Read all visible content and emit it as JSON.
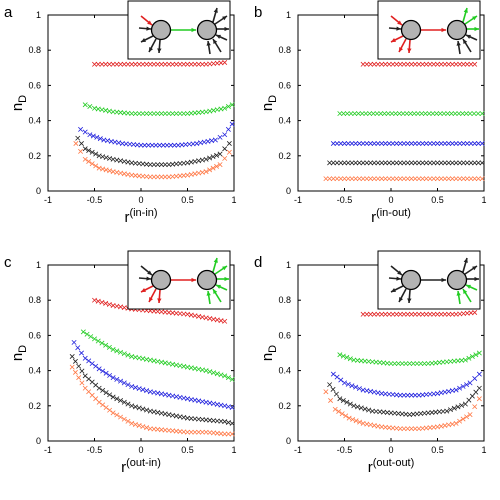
{
  "colors": {
    "red": "#e02020",
    "green": "#22cc22",
    "blue": "#2020dd",
    "black": "#222222",
    "orange": "#ff7744"
  },
  "chart_data": [
    {
      "type": "scatter",
      "panel": "a",
      "xlabel": "r",
      "xlabel_sup": "(in-in)",
      "ylabel": "n",
      "ylabel_sub": "D",
      "xlim": [
        -1,
        1
      ],
      "ylim": [
        0,
        1
      ],
      "xticks": [
        -1,
        -0.5,
        0,
        0.5,
        1
      ],
      "yticks": [
        0,
        0.2,
        0.4,
        0.6,
        0.8,
        1
      ],
      "xtick_labels": [
        "-1",
        "-0.5",
        "0",
        "0.5",
        "1"
      ],
      "ytick_labels": [
        "0",
        "0.2",
        "0.4",
        "0.6",
        "0.8",
        "1"
      ],
      "inset": {
        "in_colored": true,
        "out_colored": false
      },
      "series": [
        {
          "color": "red",
          "x": [
            -0.5,
            -0.3,
            -0.1,
            0.1,
            0.3,
            0.5,
            0.7,
            0.9
          ],
          "y": [
            0.72,
            0.72,
            0.72,
            0.72,
            0.72,
            0.72,
            0.72,
            0.73
          ]
        },
        {
          "color": "green",
          "x": [
            -0.6,
            -0.5,
            -0.3,
            -0.1,
            0.1,
            0.3,
            0.5,
            0.7,
            0.9,
            0.98
          ],
          "y": [
            0.49,
            0.47,
            0.45,
            0.44,
            0.44,
            0.44,
            0.44,
            0.45,
            0.47,
            0.49
          ]
        },
        {
          "color": "blue",
          "x": [
            -0.65,
            -0.55,
            -0.4,
            -0.2,
            0,
            0.2,
            0.4,
            0.6,
            0.8,
            0.9,
            0.98
          ],
          "y": [
            0.35,
            0.32,
            0.29,
            0.27,
            0.26,
            0.26,
            0.26,
            0.27,
            0.29,
            0.32,
            0.38
          ]
        },
        {
          "color": "black",
          "x": [
            -0.68,
            -0.6,
            -0.45,
            -0.3,
            -0.1,
            0.1,
            0.3,
            0.5,
            0.7,
            0.85,
            0.95
          ],
          "y": [
            0.3,
            0.24,
            0.2,
            0.18,
            0.16,
            0.15,
            0.15,
            0.16,
            0.18,
            0.21,
            0.27
          ]
        },
        {
          "color": "orange",
          "x": [
            -0.7,
            -0.6,
            -0.45,
            -0.3,
            -0.1,
            0.1,
            0.3,
            0.5,
            0.7,
            0.85,
            0.95
          ],
          "y": [
            0.27,
            0.18,
            0.13,
            0.11,
            0.09,
            0.08,
            0.08,
            0.09,
            0.11,
            0.15,
            0.22
          ]
        }
      ]
    },
    {
      "type": "scatter",
      "panel": "b",
      "xlabel": "r",
      "xlabel_sup": "(in-out)",
      "ylabel": "n",
      "ylabel_sub": "D",
      "xlim": [
        -1,
        1
      ],
      "ylim": [
        0,
        1
      ],
      "xticks": [
        -1,
        -0.5,
        0,
        0.5,
        1
      ],
      "yticks": [
        0,
        0.2,
        0.4,
        0.6,
        0.8,
        1
      ],
      "xtick_labels": [
        "-1",
        "-0.5",
        "0",
        "0.5",
        "1"
      ],
      "ytick_labels": [
        "0",
        "0.2",
        "0.4",
        "0.6",
        "0.8",
        "1"
      ],
      "inset": {
        "in_colored": true,
        "out_colored": true
      },
      "series": [
        {
          "color": "red",
          "x": [
            -0.3,
            -0.1,
            0.1,
            0.3,
            0.5,
            0.7,
            0.9
          ],
          "y": [
            0.72,
            0.72,
            0.72,
            0.72,
            0.72,
            0.72,
            0.72
          ]
        },
        {
          "color": "green",
          "x": [
            -0.55,
            -0.35,
            -0.15,
            0.05,
            0.25,
            0.45,
            0.65,
            0.85,
            0.98
          ],
          "y": [
            0.44,
            0.44,
            0.44,
            0.44,
            0.44,
            0.44,
            0.44,
            0.44,
            0.44
          ]
        },
        {
          "color": "blue",
          "x": [
            -0.62,
            -0.42,
            -0.22,
            -0.02,
            0.18,
            0.38,
            0.58,
            0.78,
            0.98
          ],
          "y": [
            0.27,
            0.27,
            0.27,
            0.27,
            0.27,
            0.27,
            0.27,
            0.27,
            0.27
          ]
        },
        {
          "color": "black",
          "x": [
            -0.66,
            -0.46,
            -0.26,
            -0.06,
            0.14,
            0.34,
            0.54,
            0.74,
            0.98
          ],
          "y": [
            0.16,
            0.16,
            0.16,
            0.16,
            0.16,
            0.16,
            0.16,
            0.16,
            0.16
          ]
        },
        {
          "color": "orange",
          "x": [
            -0.7,
            -0.5,
            -0.3,
            -0.1,
            0.1,
            0.3,
            0.5,
            0.7,
            0.98
          ],
          "y": [
            0.07,
            0.07,
            0.07,
            0.07,
            0.07,
            0.07,
            0.07,
            0.07,
            0.07
          ]
        }
      ]
    },
    {
      "type": "scatter",
      "panel": "c",
      "xlabel": "r",
      "xlabel_sup": "(out-in)",
      "ylabel": "n",
      "ylabel_sub": "D",
      "xlim": [
        -1,
        1
      ],
      "ylim": [
        0,
        1
      ],
      "xticks": [
        -1,
        -0.5,
        0,
        0.5,
        1
      ],
      "yticks": [
        0,
        0.2,
        0.4,
        0.6,
        0.8,
        1
      ],
      "xtick_labels": [
        "-1",
        "-0.5",
        "0",
        "0.5",
        "1"
      ],
      "ytick_labels": [
        "0",
        "0.2",
        "0.4",
        "0.6",
        "0.8",
        "1"
      ],
      "inset": {
        "in_colored": false,
        "out_colored": true
      },
      "series": [
        {
          "color": "red",
          "x": [
            -0.5,
            -0.3,
            -0.1,
            0.1,
            0.3,
            0.5,
            0.7,
            0.9
          ],
          "y": [
            0.8,
            0.77,
            0.75,
            0.74,
            0.73,
            0.72,
            0.7,
            0.68
          ]
        },
        {
          "color": "green",
          "x": [
            -0.62,
            -0.5,
            -0.3,
            -0.1,
            0.1,
            0.3,
            0.5,
            0.7,
            0.9,
            0.98
          ],
          "y": [
            0.62,
            0.58,
            0.52,
            0.48,
            0.46,
            0.44,
            0.42,
            0.4,
            0.37,
            0.35
          ]
        },
        {
          "color": "blue",
          "x": [
            -0.72,
            -0.6,
            -0.45,
            -0.3,
            -0.1,
            0.1,
            0.3,
            0.5,
            0.7,
            0.9,
            0.98
          ],
          "y": [
            0.56,
            0.47,
            0.41,
            0.36,
            0.31,
            0.28,
            0.26,
            0.24,
            0.22,
            0.2,
            0.19
          ]
        },
        {
          "color": "black",
          "x": [
            -0.74,
            -0.6,
            -0.45,
            -0.3,
            -0.1,
            0.1,
            0.3,
            0.5,
            0.7,
            0.9,
            0.98
          ],
          "y": [
            0.48,
            0.37,
            0.3,
            0.25,
            0.2,
            0.17,
            0.15,
            0.13,
            0.12,
            0.11,
            0.1
          ]
        },
        {
          "color": "orange",
          "x": [
            -0.74,
            -0.6,
            -0.45,
            -0.3,
            -0.1,
            0.1,
            0.3,
            0.5,
            0.7,
            0.9,
            0.98
          ],
          "y": [
            0.42,
            0.3,
            0.22,
            0.16,
            0.1,
            0.07,
            0.06,
            0.05,
            0.05,
            0.04,
            0.04
          ]
        }
      ]
    },
    {
      "type": "scatter",
      "panel": "d",
      "xlabel": "r",
      "xlabel_sup": "(out-out)",
      "ylabel": "n",
      "ylabel_sub": "D",
      "xlim": [
        -1,
        1
      ],
      "ylim": [
        0,
        1
      ],
      "xticks": [
        -1,
        -0.5,
        0,
        0.5,
        1
      ],
      "yticks": [
        0,
        0.2,
        0.4,
        0.6,
        0.8,
        1
      ],
      "xtick_labels": [
        "-1",
        "-0.5",
        "0",
        "0.5",
        "1"
      ],
      "ytick_labels": [
        "0",
        "0.2",
        "0.4",
        "0.6",
        "0.8",
        "1"
      ],
      "inset": {
        "in_colored": false,
        "out_colored": false
      },
      "series": [
        {
          "color": "red",
          "x": [
            -0.3,
            -0.1,
            0.1,
            0.3,
            0.5,
            0.7,
            0.9
          ],
          "y": [
            0.72,
            0.72,
            0.72,
            0.72,
            0.72,
            0.72,
            0.73
          ]
        },
        {
          "color": "green",
          "x": [
            -0.55,
            -0.4,
            -0.2,
            0,
            0.2,
            0.4,
            0.6,
            0.8,
            0.95
          ],
          "y": [
            0.49,
            0.46,
            0.45,
            0.44,
            0.44,
            0.44,
            0.45,
            0.46,
            0.5
          ]
        },
        {
          "color": "blue",
          "x": [
            -0.62,
            -0.5,
            -0.3,
            -0.1,
            0.1,
            0.3,
            0.5,
            0.7,
            0.85,
            0.95
          ],
          "y": [
            0.38,
            0.33,
            0.29,
            0.27,
            0.26,
            0.26,
            0.27,
            0.29,
            0.33,
            0.38
          ]
        },
        {
          "color": "black",
          "x": [
            -0.66,
            -0.55,
            -0.4,
            -0.2,
            0,
            0.2,
            0.4,
            0.6,
            0.8,
            0.95
          ],
          "y": [
            0.32,
            0.24,
            0.2,
            0.17,
            0.16,
            0.15,
            0.16,
            0.17,
            0.21,
            0.3
          ]
        },
        {
          "color": "orange",
          "x": [
            -0.7,
            -0.6,
            -0.45,
            -0.3,
            -0.1,
            0.1,
            0.3,
            0.5,
            0.7,
            0.85,
            0.95
          ],
          "y": [
            0.28,
            0.18,
            0.13,
            0.1,
            0.08,
            0.07,
            0.07,
            0.08,
            0.1,
            0.15,
            0.24
          ]
        }
      ]
    }
  ]
}
